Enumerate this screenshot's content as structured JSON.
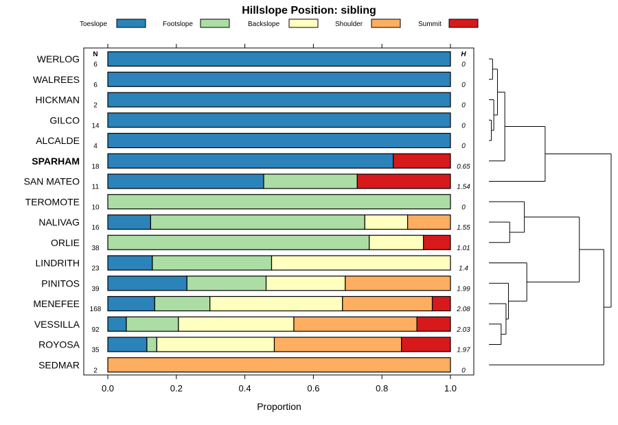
{
  "chart_data": {
    "type": "bar",
    "subtype": "stacked-horizontal-proportion",
    "title": "Hillslope Position: sibling",
    "xlabel": "Proportion",
    "xlim": [
      0,
      1
    ],
    "xticks": [
      "0.0",
      "0.2",
      "0.4",
      "0.6",
      "0.8",
      "1.0"
    ],
    "n_header": "N",
    "h_header": "H",
    "legend_position": "top",
    "series": [
      {
        "name": "Toeslope",
        "color": "#2b83ba"
      },
      {
        "name": "Footslope",
        "color": "#abdda4"
      },
      {
        "name": "Backslope",
        "color": "#ffffbf"
      },
      {
        "name": "Shoulder",
        "color": "#fdae61"
      },
      {
        "name": "Summit",
        "color": "#d7191c"
      }
    ],
    "rows": [
      {
        "label": "WERLOG",
        "n": "6",
        "h": "0",
        "bold": false,
        "values": [
          1.0,
          0,
          0,
          0,
          0
        ]
      },
      {
        "label": "WALREES",
        "n": "6",
        "h": "0",
        "bold": false,
        "values": [
          1.0,
          0,
          0,
          0,
          0
        ]
      },
      {
        "label": "HICKMAN",
        "n": "2",
        "h": "0",
        "bold": false,
        "values": [
          1.0,
          0,
          0,
          0,
          0
        ]
      },
      {
        "label": "GILCO",
        "n": "14",
        "h": "0",
        "bold": false,
        "values": [
          1.0,
          0,
          0,
          0,
          0
        ]
      },
      {
        "label": "ALCALDE",
        "n": "4",
        "h": "0",
        "bold": false,
        "values": [
          1.0,
          0,
          0,
          0,
          0
        ]
      },
      {
        "label": "SPARHAM",
        "n": "18",
        "h": "0.65",
        "bold": true,
        "values": [
          0.833,
          0,
          0,
          0,
          0.167
        ]
      },
      {
        "label": "SAN MATEO",
        "n": "11",
        "h": "1.54",
        "bold": false,
        "values": [
          0.455,
          0.273,
          0,
          0,
          0.272
        ]
      },
      {
        "label": "TEROMOTE",
        "n": "10",
        "h": "0",
        "bold": false,
        "values": [
          0,
          1.0,
          0,
          0,
          0
        ]
      },
      {
        "label": "NALIVAG",
        "n": "16",
        "h": "1.55",
        "bold": false,
        "values": [
          0.125,
          0.625,
          0.125,
          0.125,
          0
        ]
      },
      {
        "label": "ORLIE",
        "n": "38",
        "h": "1.01",
        "bold": false,
        "values": [
          0,
          0.763,
          0.158,
          0,
          0.079
        ]
      },
      {
        "label": "LINDRITH",
        "n": "23",
        "h": "1.4",
        "bold": false,
        "values": [
          0.13,
          0.348,
          0.522,
          0,
          0
        ]
      },
      {
        "label": "PINITOS",
        "n": "39",
        "h": "1.99",
        "bold": false,
        "values": [
          0.231,
          0.231,
          0.231,
          0.307,
          0
        ]
      },
      {
        "label": "MENEFEE",
        "n": "168",
        "h": "2.08",
        "bold": false,
        "values": [
          0.137,
          0.161,
          0.387,
          0.262,
          0.053
        ]
      },
      {
        "label": "VESSILLA",
        "n": "92",
        "h": "2.03",
        "bold": false,
        "values": [
          0.054,
          0.152,
          0.337,
          0.359,
          0.098
        ]
      },
      {
        "label": "ROYOSA",
        "n": "35",
        "h": "1.97",
        "bold": false,
        "values": [
          0.114,
          0.029,
          0.343,
          0.371,
          0.143
        ]
      },
      {
        "label": "SEDMAR",
        "n": "2",
        "h": "0",
        "bold": false,
        "values": [
          0,
          0,
          0,
          1.0,
          0
        ]
      }
    ],
    "dendrogram": {
      "merges": [
        {
          "a": 3,
          "b": 4,
          "height": 0.02
        },
        {
          "a": 2,
          "b": -1,
          "height": 0.04
        },
        {
          "a": 0,
          "b": 1,
          "height": 0.03
        },
        {
          "a": -3,
          "b": -2,
          "height": 0.07
        },
        {
          "a": -4,
          "b": 5,
          "height": 0.13
        },
        {
          "a": -5,
          "b": 6,
          "height": 0.46
        },
        {
          "a": 8,
          "b": 9,
          "height": 0.17
        },
        {
          "a": 7,
          "b": -7,
          "height": 0.29
        },
        {
          "a": 13,
          "b": 14,
          "height": 0.1
        },
        {
          "a": 12,
          "b": -9,
          "height": 0.14
        },
        {
          "a": 11,
          "b": -10,
          "height": 0.16
        },
        {
          "a": 10,
          "b": -11,
          "height": 0.31
        },
        {
          "a": -8,
          "b": -12,
          "height": 0.74
        },
        {
          "a": -13,
          "b": 15,
          "height": 0.94
        },
        {
          "a": -6,
          "b": -14,
          "height": 1.0
        }
      ]
    }
  }
}
